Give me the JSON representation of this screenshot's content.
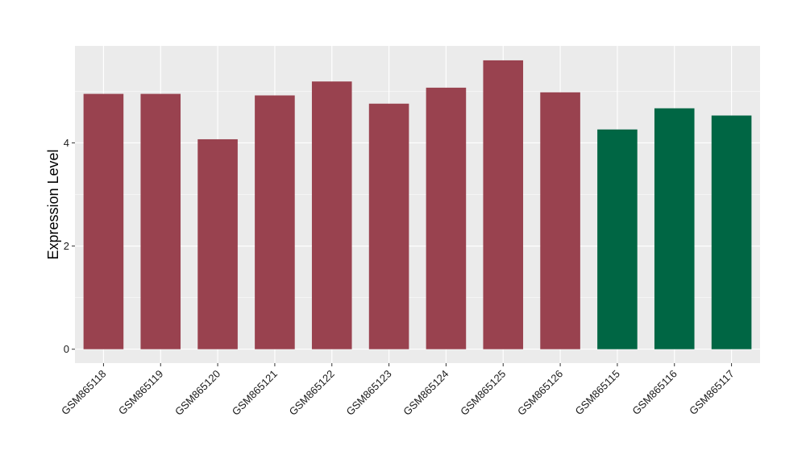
{
  "chart_data": {
    "type": "bar",
    "title": "",
    "xlabel": "",
    "ylabel": "Expression Level",
    "categories": [
      "GSM865118",
      "GSM865119",
      "GSM865120",
      "GSM865121",
      "GSM865122",
      "GSM865123",
      "GSM865124",
      "GSM865125",
      "GSM865126",
      "GSM865115",
      "GSM865116",
      "GSM865117"
    ],
    "values": [
      4.95,
      4.95,
      4.07,
      4.92,
      5.19,
      4.76,
      5.07,
      5.6,
      4.98,
      4.26,
      4.67,
      4.53
    ],
    "groups": [
      "a",
      "a",
      "a",
      "a",
      "a",
      "a",
      "a",
      "a",
      "a",
      "b",
      "b",
      "b"
    ],
    "group_colors": {
      "a": "#99424f",
      "b": "#006644"
    },
    "yticks": [
      0,
      2,
      4
    ],
    "ylim": [
      -0.27,
      5.88
    ],
    "grid": true,
    "legend": "none",
    "panel_background": "#ebebeb",
    "grid_color": "#ffffff"
  }
}
